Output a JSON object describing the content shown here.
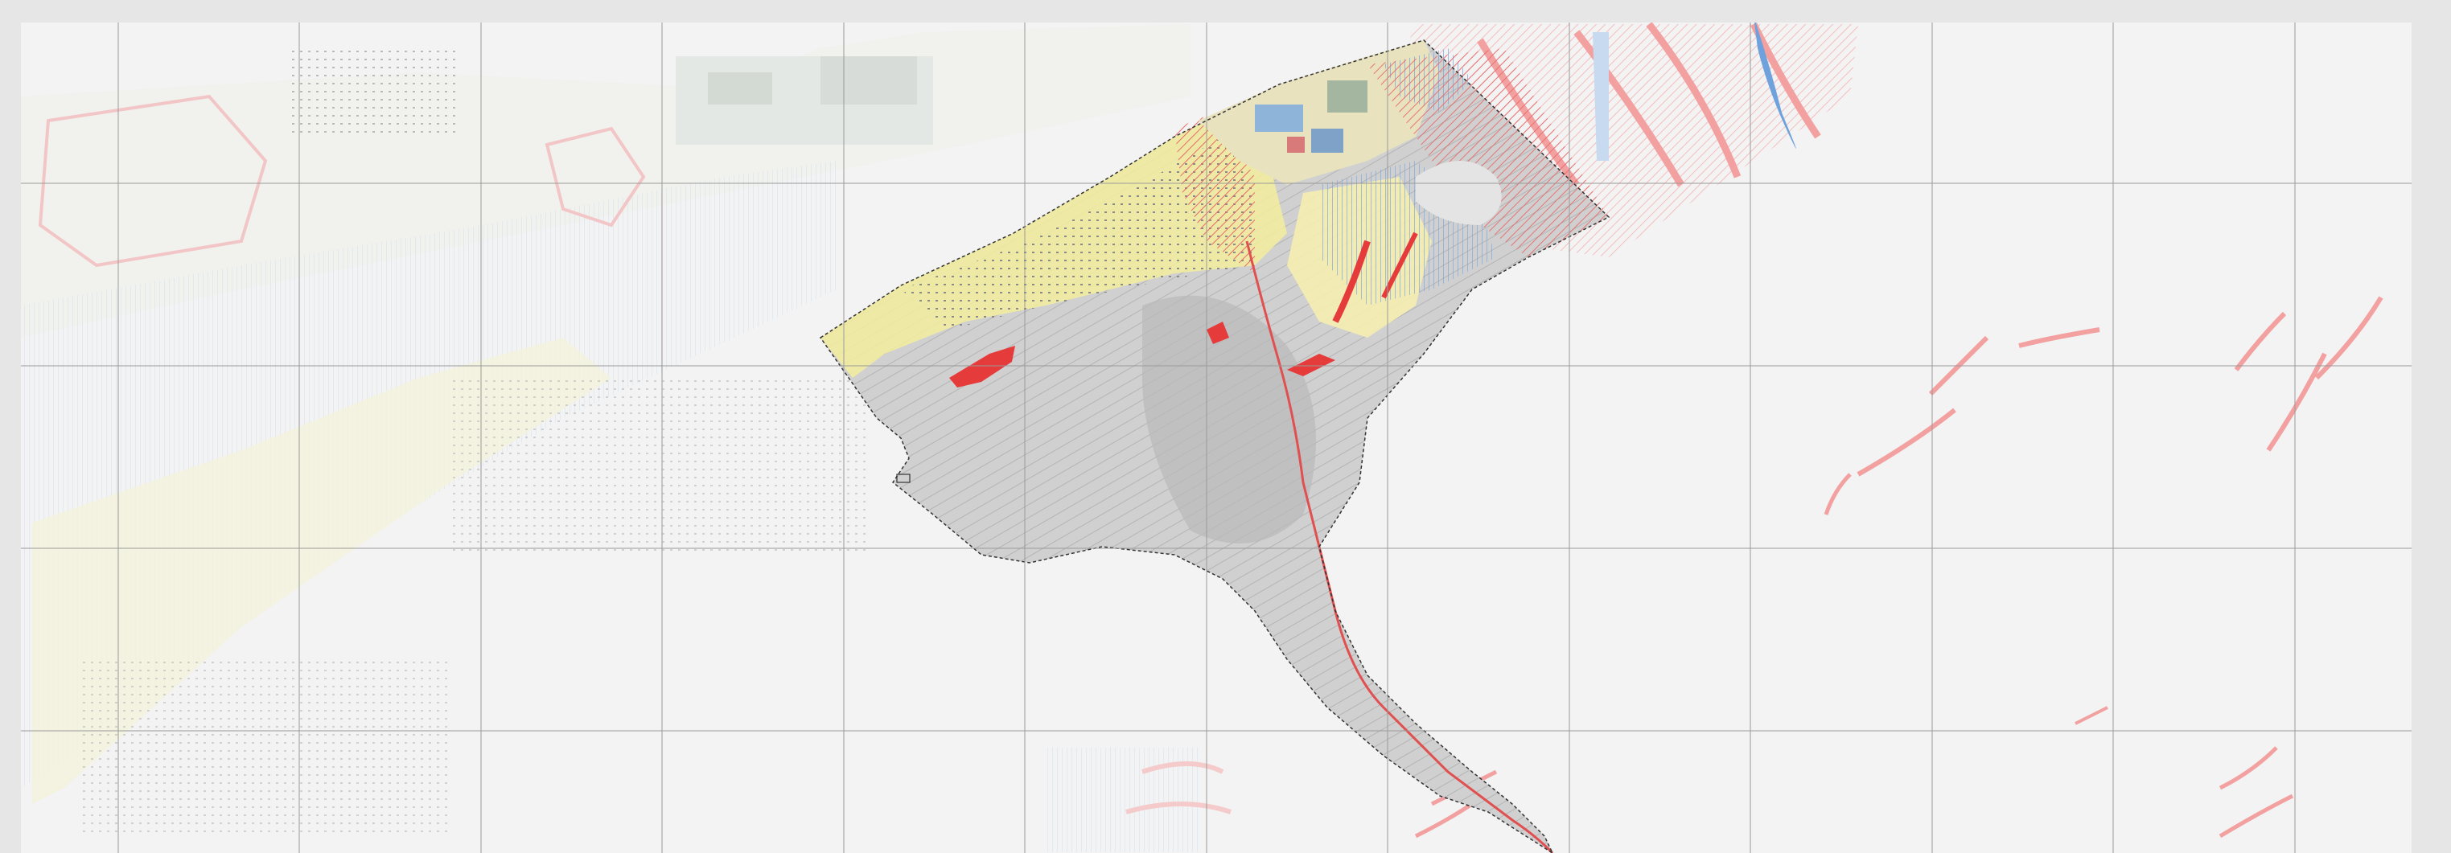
{
  "map": {
    "kind": "zoning plan overlay on topographic basemap",
    "grid": true,
    "colors": {
      "frame": "#e6e6e6",
      "background": "#f3f3f3",
      "grid_line": "#9a9a9a",
      "boundary": "#333333",
      "terrain_fill": "#c8c8c8",
      "hazard_red": "#e53b3b",
      "hazard_faded": "#f4a8a8",
      "yellow_zone": "#f2ed9a",
      "blue_zone": "#9ec3e8",
      "water_blue": "#4a8fd6",
      "buildings": "#7c7c7c"
    }
  }
}
